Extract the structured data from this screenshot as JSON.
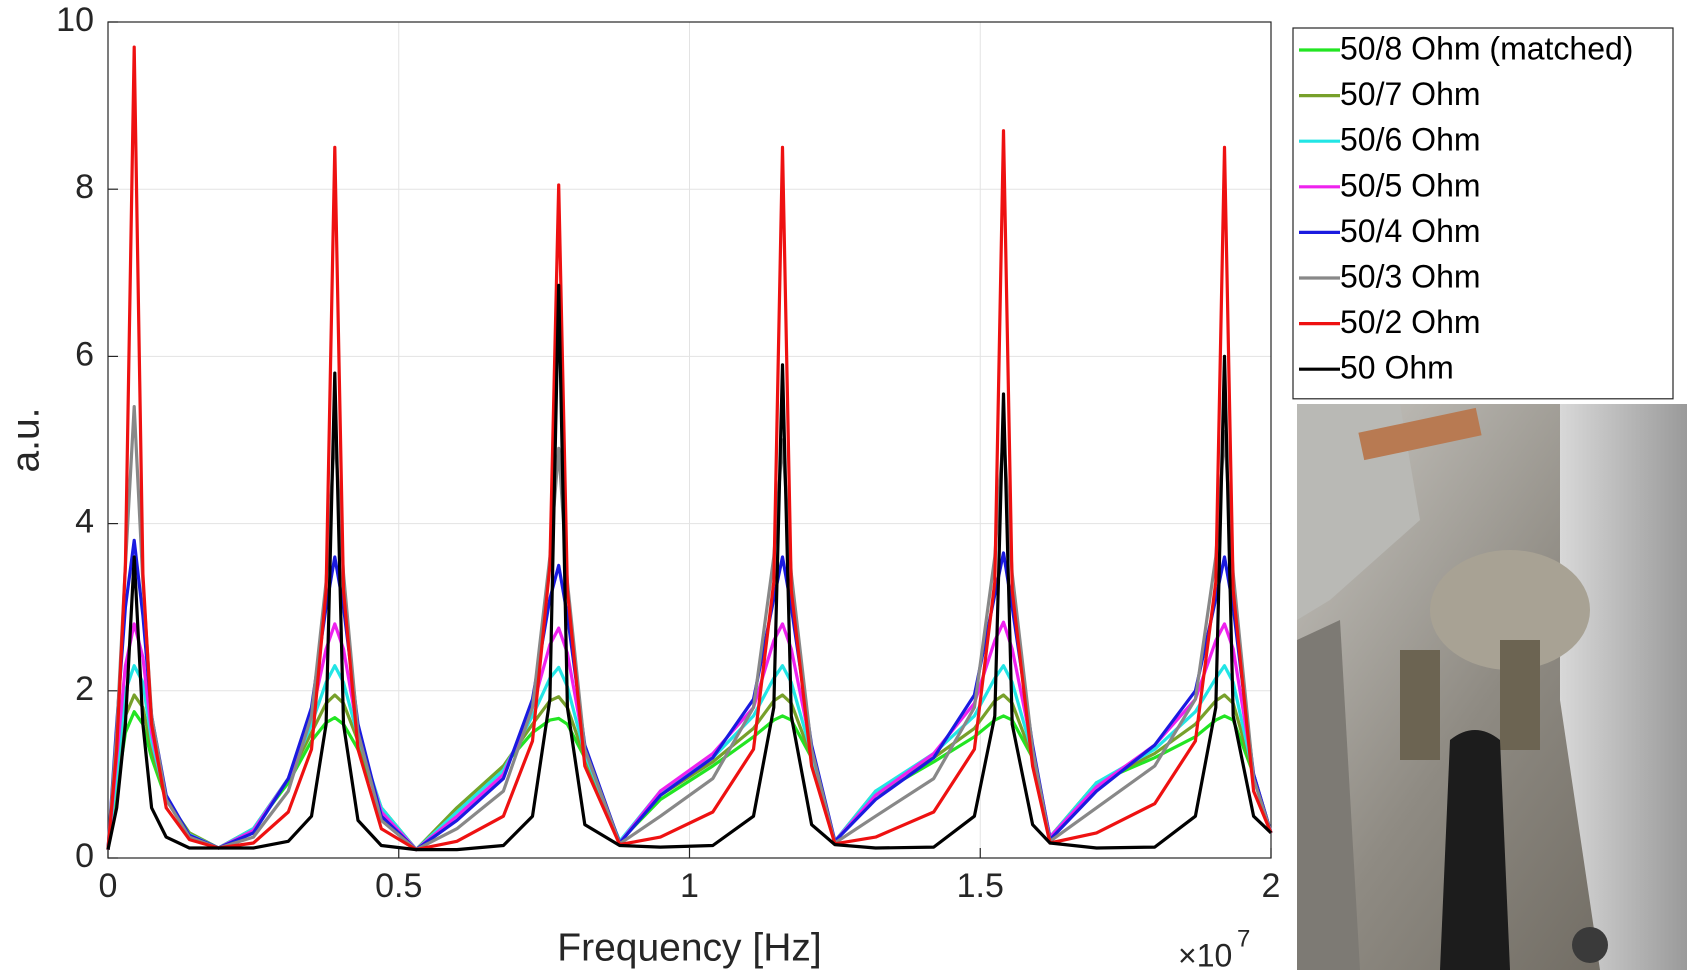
{
  "chart_data": {
    "type": "line",
    "x_label": "Frequency [Hz]",
    "y_label": "a.u.",
    "x_multiplier": {
      "base": "×10",
      "power": "7"
    },
    "xlim": [
      0,
      2
    ],
    "xticks": [
      0,
      0.5,
      1,
      1.5,
      2
    ],
    "ylim": [
      0,
      10
    ],
    "yticks": [
      0,
      2,
      4,
      6,
      8,
      10
    ],
    "grid": true,
    "legend": "outside-right",
    "x": [
      0,
      0.015,
      0.03,
      0.045,
      0.06,
      0.075,
      0.1,
      0.14,
      0.19,
      0.25,
      0.31,
      0.35,
      0.375,
      0.39,
      0.405,
      0.43,
      0.47,
      0.53,
      0.6,
      0.68,
      0.73,
      0.76,
      0.775,
      0.79,
      0.82,
      0.88,
      0.95,
      1.04,
      1.11,
      1.145,
      1.16,
      1.175,
      1.21,
      1.25,
      1.32,
      1.42,
      1.49,
      1.525,
      1.54,
      1.555,
      1.59,
      1.62,
      1.7,
      1.8,
      1.87,
      1.905,
      1.92,
      1.935,
      1.97,
      2.0
    ],
    "series": [
      {
        "name": "50/8 Ohm (matched)",
        "color": "#22e522",
        "values": [
          0.1,
          0.8,
          1.5,
          1.75,
          1.6,
          1.2,
          0.7,
          0.3,
          0.12,
          0.35,
          0.9,
          1.4,
          1.62,
          1.68,
          1.6,
          1.3,
          0.6,
          0.1,
          0.6,
          1.1,
          1.5,
          1.65,
          1.67,
          1.6,
          1.2,
          0.2,
          0.7,
          1.1,
          1.45,
          1.65,
          1.7,
          1.65,
          1.2,
          0.2,
          0.75,
          1.15,
          1.45,
          1.65,
          1.7,
          1.65,
          1.2,
          0.25,
          0.9,
          1.2,
          1.45,
          1.65,
          1.7,
          1.65,
          1.0,
          0.3
        ]
      },
      {
        "name": "50/7 Ohm",
        "color": "#77a02a",
        "values": [
          0.1,
          0.9,
          1.7,
          1.95,
          1.8,
          1.3,
          0.7,
          0.3,
          0.12,
          0.35,
          0.95,
          1.5,
          1.85,
          1.95,
          1.85,
          1.4,
          0.6,
          0.1,
          0.6,
          1.1,
          1.6,
          1.88,
          1.93,
          1.8,
          1.2,
          0.2,
          0.75,
          1.15,
          1.55,
          1.88,
          1.95,
          1.85,
          1.2,
          0.2,
          0.8,
          1.2,
          1.55,
          1.88,
          1.95,
          1.85,
          1.2,
          0.25,
          0.9,
          1.25,
          1.6,
          1.88,
          1.95,
          1.85,
          1.0,
          0.3
        ]
      },
      {
        "name": "50/6 Ohm",
        "color": "#22e5e5",
        "values": [
          0.1,
          1.0,
          2.0,
          2.3,
          2.1,
          1.4,
          0.7,
          0.28,
          0.12,
          0.35,
          0.95,
          1.6,
          2.1,
          2.3,
          2.1,
          1.45,
          0.6,
          0.1,
          0.55,
          1.05,
          1.7,
          2.15,
          2.28,
          2.05,
          1.25,
          0.2,
          0.8,
          1.2,
          1.7,
          2.15,
          2.3,
          2.1,
          1.25,
          0.2,
          0.8,
          1.25,
          1.7,
          2.15,
          2.3,
          2.1,
          1.25,
          0.25,
          0.9,
          1.3,
          1.75,
          2.15,
          2.3,
          2.1,
          1.0,
          0.3
        ]
      },
      {
        "name": "50/5 Ohm",
        "color": "#ee22ee",
        "values": [
          0.1,
          1.2,
          2.3,
          2.8,
          2.4,
          1.5,
          0.7,
          0.27,
          0.12,
          0.33,
          0.95,
          1.7,
          2.5,
          2.8,
          2.5,
          1.5,
          0.55,
          0.1,
          0.5,
          1.0,
          1.8,
          2.55,
          2.75,
          2.45,
          1.3,
          0.18,
          0.8,
          1.25,
          1.8,
          2.6,
          2.8,
          2.5,
          1.3,
          0.2,
          0.75,
          1.25,
          1.85,
          2.6,
          2.82,
          2.5,
          1.3,
          0.25,
          0.85,
          1.35,
          1.9,
          2.6,
          2.8,
          2.5,
          1.0,
          0.3
        ]
      },
      {
        "name": "50/4 Ohm",
        "color": "#1a1ae0",
        "values": [
          0.1,
          1.6,
          3.0,
          3.8,
          2.9,
          1.7,
          0.75,
          0.27,
          0.12,
          0.3,
          0.95,
          1.8,
          3.0,
          3.6,
          3.0,
          1.6,
          0.5,
          0.1,
          0.45,
          0.95,
          1.9,
          3.1,
          3.5,
          2.9,
          1.35,
          0.18,
          0.75,
          1.2,
          1.9,
          3.1,
          3.6,
          3.0,
          1.35,
          0.2,
          0.7,
          1.2,
          1.95,
          3.15,
          3.65,
          3.0,
          1.35,
          0.22,
          0.8,
          1.35,
          2.0,
          3.1,
          3.6,
          3.0,
          1.0,
          0.3
        ]
      },
      {
        "name": "50/3 Ohm",
        "color": "#888888",
        "values": [
          0.1,
          1.5,
          3.5,
          5.4,
          3.3,
          1.7,
          0.7,
          0.25,
          0.12,
          0.25,
          0.8,
          1.7,
          3.3,
          5.1,
          3.4,
          1.5,
          0.45,
          0.1,
          0.35,
          0.8,
          1.8,
          3.6,
          4.9,
          3.3,
          1.3,
          0.17,
          0.5,
          0.95,
          1.8,
          3.6,
          5.0,
          3.4,
          1.3,
          0.18,
          0.5,
          0.95,
          1.8,
          3.6,
          5.1,
          3.4,
          1.3,
          0.2,
          0.6,
          1.1,
          1.9,
          3.6,
          5.1,
          3.4,
          0.95,
          0.3
        ]
      },
      {
        "name": "50/2 Ohm",
        "color": "#ee1111",
        "values": [
          0.1,
          1.3,
          3.5,
          9.7,
          3.4,
          1.6,
          0.6,
          0.22,
          0.12,
          0.18,
          0.55,
          1.3,
          3.2,
          8.5,
          3.2,
          1.3,
          0.35,
          0.1,
          0.2,
          0.5,
          1.4,
          3.5,
          8.05,
          3.2,
          1.1,
          0.16,
          0.25,
          0.55,
          1.3,
          3.3,
          8.5,
          3.2,
          1.1,
          0.17,
          0.25,
          0.55,
          1.3,
          3.3,
          8.7,
          3.2,
          1.1,
          0.18,
          0.3,
          0.65,
          1.4,
          3.3,
          8.5,
          3.2,
          0.8,
          0.3
        ]
      },
      {
        "name": "50 Ohm",
        "color": "#000000",
        "values": [
          0.1,
          0.6,
          1.6,
          3.6,
          1.6,
          0.6,
          0.25,
          0.12,
          0.12,
          0.12,
          0.2,
          0.5,
          1.6,
          5.8,
          1.6,
          0.45,
          0.15,
          0.1,
          0.1,
          0.15,
          0.5,
          1.9,
          6.85,
          1.8,
          0.4,
          0.15,
          0.13,
          0.15,
          0.5,
          1.8,
          5.9,
          1.7,
          0.4,
          0.16,
          0.12,
          0.13,
          0.5,
          1.7,
          5.55,
          1.6,
          0.4,
          0.18,
          0.12,
          0.13,
          0.5,
          1.8,
          6.0,
          1.7,
          0.5,
          0.3
        ]
      }
    ]
  }
}
